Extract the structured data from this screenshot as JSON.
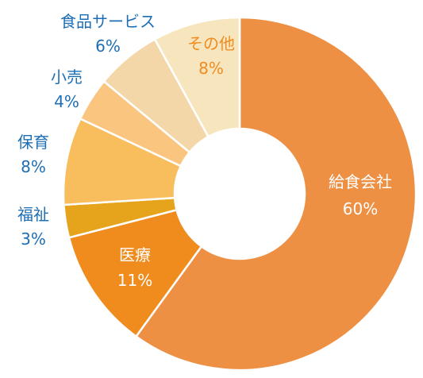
{
  "chart_data": {
    "type": "pie",
    "variant": "donut",
    "title": "",
    "slices": [
      {
        "name": "給食会社",
        "value": 60,
        "label": "60%",
        "color": "#EE9044",
        "label_color": "#ffffff"
      },
      {
        "name": "医療",
        "value": 11,
        "label": "11%",
        "color": "#F08C1E",
        "label_color": "#ffffff"
      },
      {
        "name": "福祉",
        "value": 3,
        "label": "3%",
        "color": "#E5A41C",
        "label_color": "#1E6EB4"
      },
      {
        "name": "保育",
        "value": 8,
        "label": "8%",
        "color": "#F8BE5E",
        "label_color": "#1E6EB4"
      },
      {
        "name": "小売",
        "value": 4,
        "label": "4%",
        "color": "#FAC57E",
        "label_color": "#1E6EB4"
      },
      {
        "name": "食品サービス",
        "value": 6,
        "label": "6%",
        "color": "#F3D7A8",
        "label_color": "#1E6EB4"
      },
      {
        "name": "その他",
        "value": 8,
        "label": "8%",
        "color": "#F7E5BE",
        "label_color": "#F08C1E"
      }
    ]
  }
}
